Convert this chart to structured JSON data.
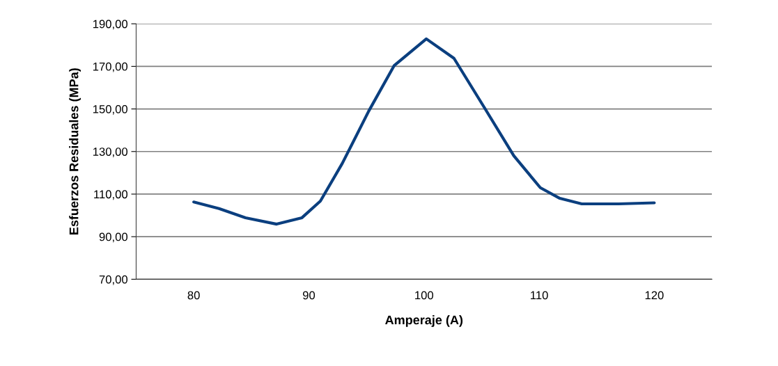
{
  "chart_data": {
    "type": "line",
    "xlabel": "Amperaje (A)",
    "ylabel": "Esfuerzos Residuales (MPa)",
    "x": [
      80,
      82.2,
      84.5,
      87.2,
      89.4,
      91,
      92.9,
      95.2,
      97.4,
      100.2,
      102.6,
      105.2,
      107.8,
      110.1,
      111.8,
      113.7,
      116.9,
      120
    ],
    "series": [
      {
        "color": "#0b3f7f",
        "values": [
          106.3,
          103.2,
          98.9,
          95.9,
          98.9,
          106.7,
          124.4,
          149,
          170.3,
          182.9,
          173.8,
          151,
          128,
          113,
          108,
          105.4,
          105.4,
          105.9
        ]
      }
    ],
    "xlim": [
      75,
      125
    ],
    "xticks": [
      80,
      90,
      100,
      110,
      120
    ],
    "ylim": [
      70,
      190
    ],
    "yticks": [
      {
        "value": 70,
        "label": "70,00"
      },
      {
        "value": 90,
        "label": "90,00"
      },
      {
        "value": 110,
        "label": "110,00"
      },
      {
        "value": 130,
        "label": "130,00"
      },
      {
        "value": 150,
        "label": "150,00"
      },
      {
        "value": 170,
        "label": "170,00"
      },
      {
        "value": 190,
        "label": "190,00"
      }
    ],
    "grid": "y",
    "marker": "none",
    "line_style": "solid"
  }
}
